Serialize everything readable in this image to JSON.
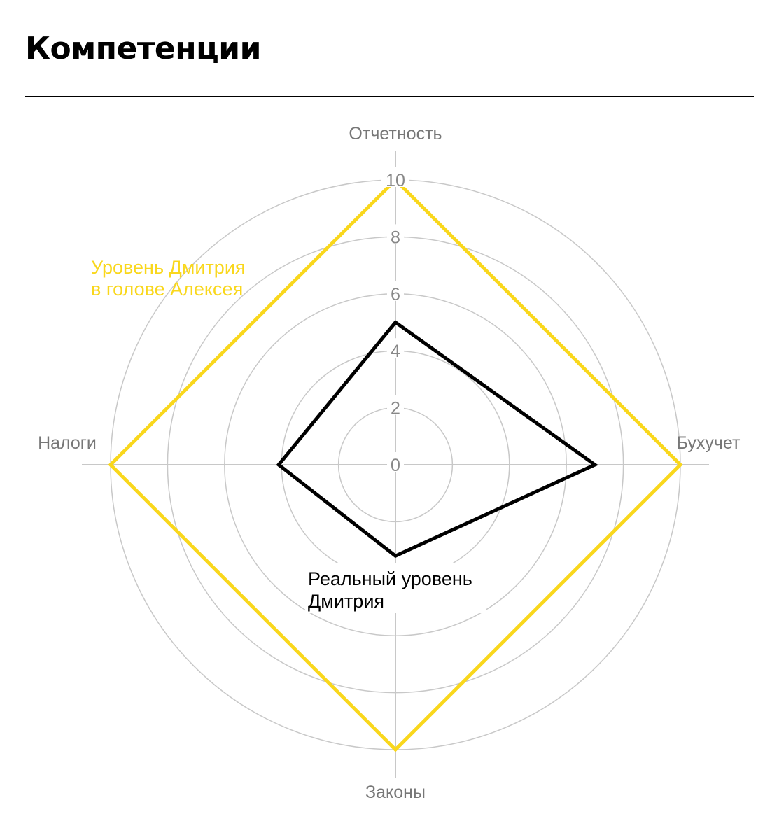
{
  "page": {
    "title": "Компетенции"
  },
  "chart_data": {
    "type": "radar",
    "title": "Компетенции",
    "axes": [
      "Отчетность",
      "Бухучет",
      "Законы",
      "Налоги"
    ],
    "rlim": [
      0,
      10
    ],
    "rticks": [
      0,
      2,
      4,
      6,
      8,
      10
    ],
    "grid": true,
    "series": [
      {
        "name": "Уровень Дмитрия в голове Алексея",
        "label_lines": [
          "Уровень Дмитрия",
          "в голове Алексея"
        ],
        "values": [
          10,
          10,
          10,
          10
        ],
        "color": "#f9d71c"
      },
      {
        "name": "Реальный уровень Дмитрия",
        "label_lines": [
          "Реальный уровень",
          "Дмитрия"
        ],
        "values": [
          5,
          7,
          3.2,
          4.1
        ],
        "color": "#000000"
      }
    ],
    "colors": {
      "grid": "#c8c8c8",
      "axis_label": "#777777",
      "tick_label": "#888888",
      "ideal": "#f9d71c",
      "real": "#000000"
    }
  }
}
